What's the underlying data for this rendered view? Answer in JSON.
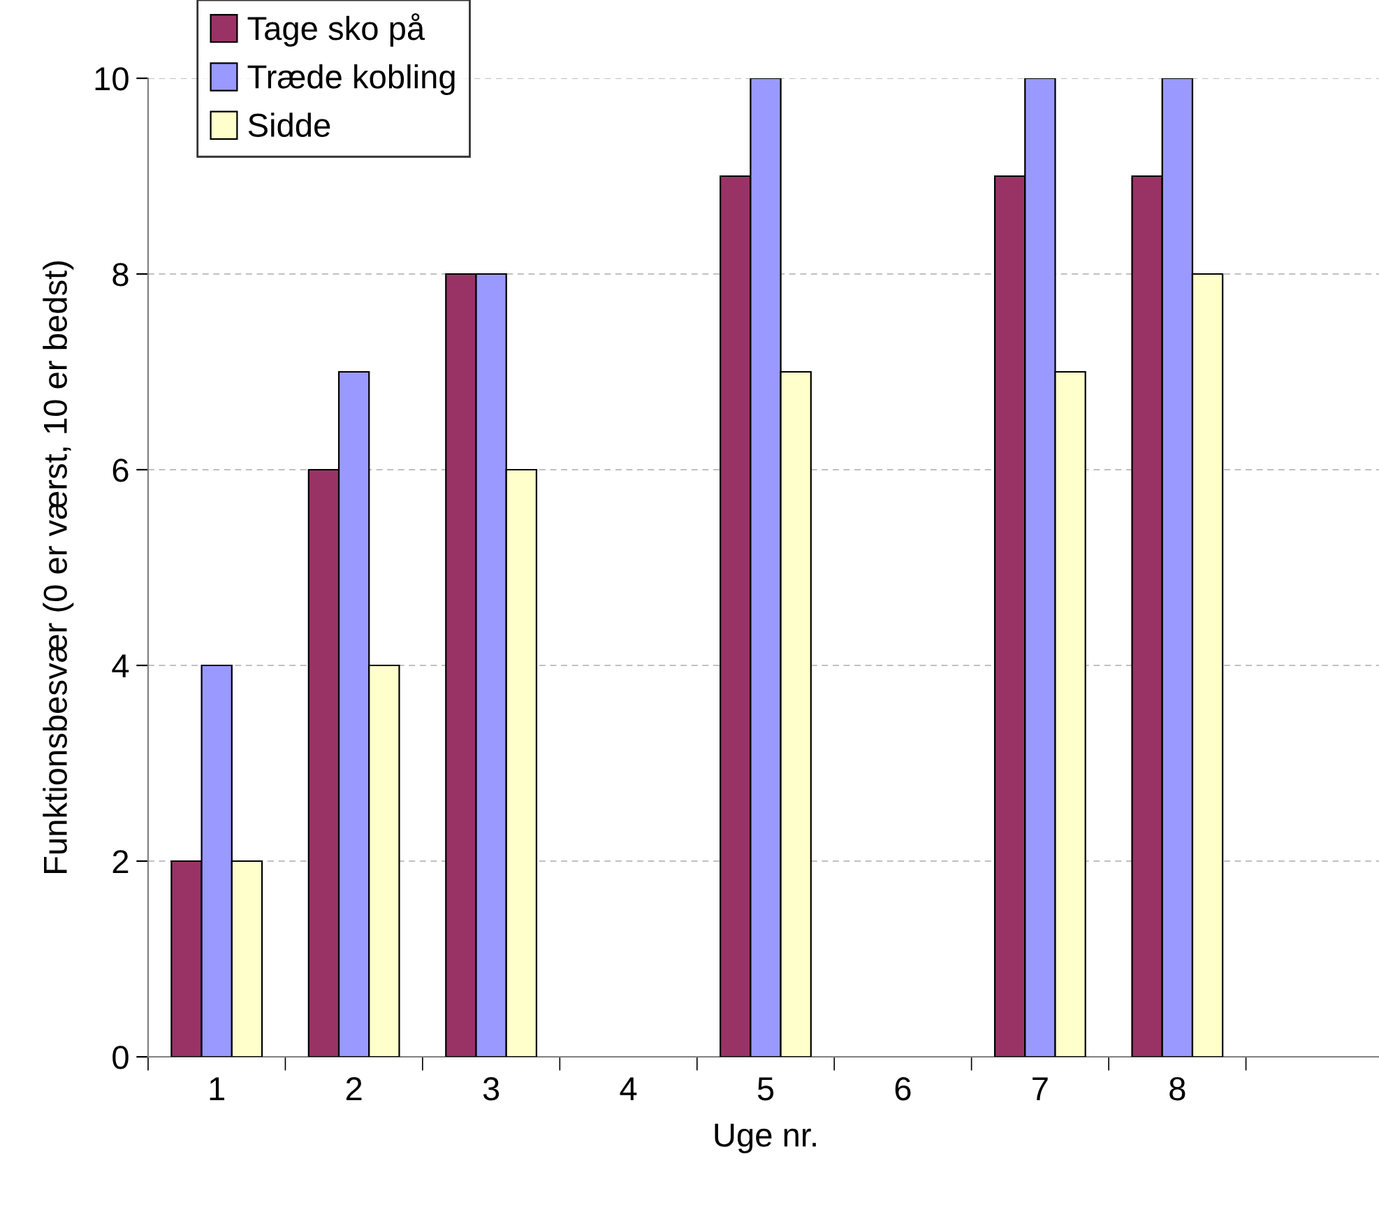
{
  "chart_data": {
    "type": "bar",
    "xlabel": "Uge nr.",
    "ylabel": "Funktionsbesvær (0 er værst, 10 er bedst)",
    "categories": [
      "1",
      "2",
      "3",
      "4",
      "5",
      "6",
      "7",
      "8",
      null
    ],
    "series": [
      {
        "name": "Tage sko på",
        "color": "#993366",
        "values": [
          2,
          6,
          8,
          null,
          9,
          null,
          9,
          9,
          null
        ]
      },
      {
        "name": "Træde kobling",
        "color": "#9999ff",
        "values": [
          4,
          7,
          8,
          null,
          10,
          null,
          10,
          10,
          null
        ]
      },
      {
        "name": "Sidde",
        "color": "#ffffcc",
        "values": [
          2,
          4,
          6,
          null,
          7,
          null,
          7,
          8,
          null
        ]
      }
    ],
    "ylim": [
      0,
      10
    ],
    "yticks": [
      0,
      2,
      4,
      6,
      8,
      10
    ],
    "grid": "y",
    "legend": "top left"
  }
}
